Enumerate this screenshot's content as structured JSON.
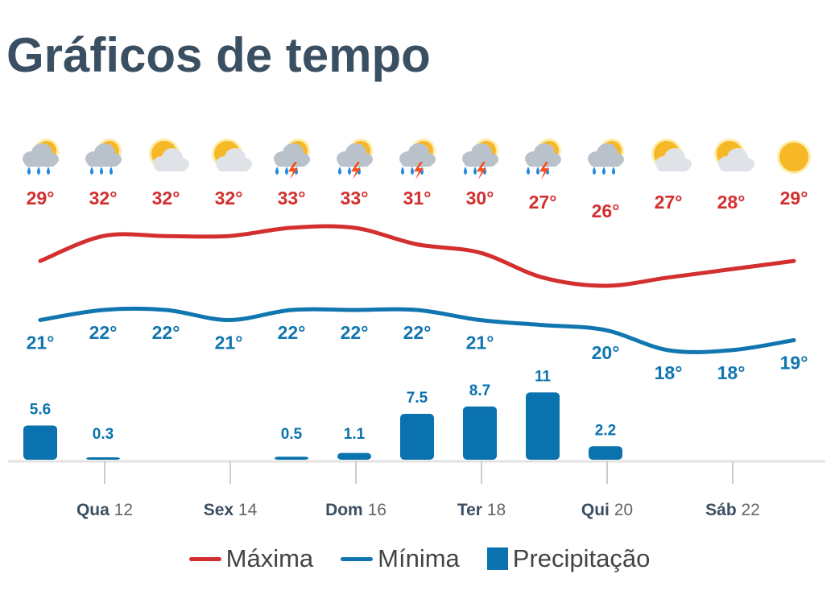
{
  "title": "Gráficos de tempo",
  "colors": {
    "max": "#d32f2f",
    "min": "#1176b0",
    "precip": "#0a72ae",
    "title": "#3b4f62"
  },
  "legend": {
    "max": "Máxima",
    "min": "Mínima",
    "precip": "Precipitação"
  },
  "chart_data": {
    "type": "line+bar",
    "day_labels": [
      {
        "dow": "Qua",
        "num": "12"
      },
      {
        "dow": "Sex",
        "num": "14"
      },
      {
        "dow": "Dom",
        "num": "16"
      },
      {
        "dow": "Ter",
        "num": "18"
      },
      {
        "dow": "Qui",
        "num": "20"
      },
      {
        "dow": "Sáb",
        "num": "22"
      }
    ],
    "icons": [
      "rain-icon",
      "rain-icon",
      "partly-cloudy-icon",
      "partly-cloudy-icon",
      "thunderstorm-icon",
      "thunderstorm-icon",
      "thunderstorm-icon",
      "thunderstorm-icon",
      "thunderstorm-icon",
      "rain-icon",
      "partly-cloudy-icon",
      "partly-cloudy-icon",
      "sun-icon"
    ],
    "series": [
      {
        "name": "Máxima",
        "values": [
          29,
          32,
          32,
          32,
          33,
          33,
          31,
          30,
          27,
          26,
          27,
          28,
          29
        ]
      },
      {
        "name": "Mínima",
        "values": [
          21,
          22,
          22,
          21,
          22,
          22,
          22,
          21,
          20.5,
          20,
          18,
          18,
          19
        ]
      },
      {
        "name": "Precipitação",
        "values": [
          5.6,
          0.3,
          0,
          0,
          0.5,
          1.1,
          7.5,
          8.7,
          11,
          2.2,
          0,
          0,
          0
        ]
      }
    ],
    "max_labels": [
      "29°",
      "32°",
      "32°",
      "32°",
      "33°",
      "33°",
      "31°",
      "30°",
      "27°",
      "26°",
      "27°",
      "28°",
      "29°"
    ],
    "min_labels": [
      "21°",
      "22°",
      "22°",
      "21°",
      "22°",
      "22°",
      "22°",
      "21°",
      "",
      "20°",
      "18°",
      "18°",
      "19°"
    ],
    "precip_labels": [
      "5.6",
      "0.3",
      "",
      "",
      "0.5",
      "1.1",
      "7.5",
      "8.7",
      "11",
      "2.2",
      "",
      "",
      ""
    ]
  }
}
